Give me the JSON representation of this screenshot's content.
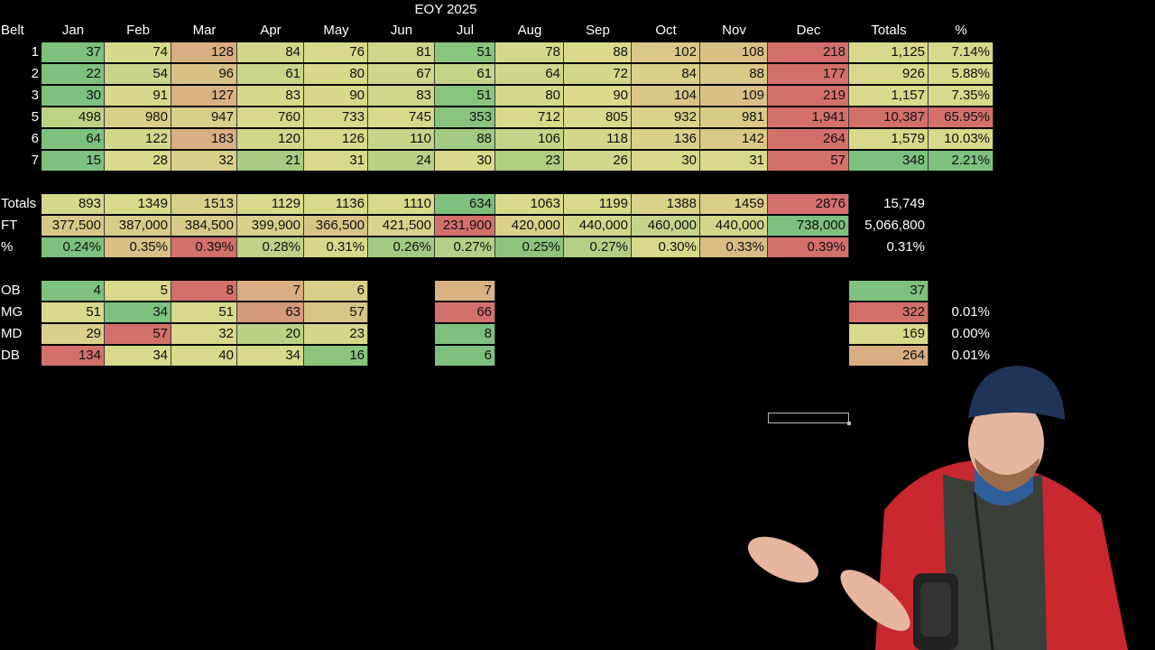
{
  "sheet": {
    "title": "EOY 2025",
    "corner_label": "Belt",
    "month_headers": [
      "Jan",
      "Feb",
      "Mar",
      "Apr",
      "May",
      "Jun",
      "Jul",
      "Aug",
      "Sep",
      "Oct",
      "Nov",
      "Dec"
    ],
    "totals_header": "Totals",
    "percent_header": "%"
  },
  "belts": [
    {
      "label": "1",
      "values": [
        "37",
        "74",
        "128",
        "84",
        "76",
        "81",
        "51",
        "78",
        "88",
        "102",
        "108",
        "218"
      ],
      "total": "1,125",
      "pct": "7.14%"
    },
    {
      "label": "2",
      "values": [
        "22",
        "54",
        "96",
        "61",
        "80",
        "67",
        "61",
        "64",
        "72",
        "84",
        "88",
        "177"
      ],
      "total": "926",
      "pct": "5.88%"
    },
    {
      "label": "3",
      "values": [
        "30",
        "91",
        "127",
        "83",
        "90",
        "83",
        "51",
        "80",
        "90",
        "104",
        "109",
        "219"
      ],
      "total": "1,157",
      "pct": "7.35%"
    },
    {
      "label": "5",
      "values": [
        "498",
        "980",
        "947",
        "760",
        "733",
        "745",
        "353",
        "712",
        "805",
        "932",
        "981",
        "1,941"
      ],
      "total": "10,387",
      "pct": "65.95%"
    },
    {
      "label": "6",
      "values": [
        "64",
        "122",
        "183",
        "120",
        "126",
        "110",
        "88",
        "106",
        "118",
        "136",
        "142",
        "264"
      ],
      "total": "1,579",
      "pct": "10.03%"
    },
    {
      "label": "7",
      "values": [
        "15",
        "28",
        "32",
        "21",
        "31",
        "24",
        "30",
        "23",
        "26",
        "30",
        "31",
        "57"
      ],
      "total": "348",
      "pct": "2.21%"
    }
  ],
  "belt_colors": [
    [
      "#7ec07e",
      "#d7d98a",
      "#d8ad82",
      "#d2d78a",
      "#d8d98a",
      "#cfd78a",
      "#88c47e",
      "#d4d88a",
      "#dcd98a",
      "#d9c887",
      "#d9c086",
      "#d4706c"
    ],
    [
      "#7ec07e",
      "#c7d48a",
      "#d8c187",
      "#cad58a",
      "#d8d88a",
      "#cdd68a",
      "#c3d48a",
      "#cdd68a",
      "#d2d78a",
      "#d9cf88",
      "#d9c886",
      "#d4706c"
    ],
    [
      "#7ec07e",
      "#d8d88a",
      "#d8b283",
      "#d6d88a",
      "#d8d88a",
      "#cfd78a",
      "#88c47e",
      "#d4d88a",
      "#dcd98a",
      "#d9c586",
      "#d9c086",
      "#d4706c"
    ],
    [
      "#bed284",
      "#d9cf88",
      "#d8cf88",
      "#d8d98a",
      "#d8d98a",
      "#d8d98a",
      "#88c47e",
      "#d8d98a",
      "#d8d98a",
      "#d9d38a",
      "#d9cb86",
      "#d4706c"
    ],
    [
      "#7ec07e",
      "#d2d78a",
      "#d8ae82",
      "#d0d68a",
      "#d8d98a",
      "#c6d48a",
      "#a1ca82",
      "#c4d48a",
      "#d4d78a",
      "#d9d08a",
      "#d9c886",
      "#d4706c"
    ],
    [
      "#7ec07e",
      "#d8d98a",
      "#d8d08a",
      "#a6cb82",
      "#d8d98a",
      "#b9d086",
      "#d8d98a",
      "#b0cd84",
      "#d0d68a",
      "#d8d98a",
      "#d8d98a",
      "#d4706c"
    ]
  ],
  "belt_total_colors": [
    "#d8d98a",
    "#d8d98a",
    "#d8d98a",
    "#d4706c",
    "#d8d98a",
    "#7ec07e"
  ],
  "belt_pct_colors": [
    "#d8d98a",
    "#d8d98a",
    "#d8d98a",
    "#d4706c",
    "#d8d98a",
    "#7ec07e"
  ],
  "summary": {
    "totals": {
      "label": "Totals",
      "values": [
        "893",
        "1349",
        "1513",
        "1129",
        "1136",
        "1110",
        "634",
        "1063",
        "1199",
        "1388",
        "1459",
        "2876"
      ],
      "grand": "15,749",
      "colors": [
        "#d4d88a",
        "#d8d98a",
        "#d8d08a",
        "#d8d98a",
        "#d8d98a",
        "#d8d98a",
        "#7ec07e",
        "#d8d98a",
        "#d8d98a",
        "#d9d38a",
        "#d9cd88",
        "#d4706c"
      ]
    },
    "ft": {
      "label": "FT",
      "values": [
        "377,500",
        "387,000",
        "384,500",
        "399,900",
        "366,500",
        "421,500",
        "231,900",
        "420,000",
        "440,000",
        "460,000",
        "440,000",
        "738,000"
      ],
      "grand": "5,066,800",
      "colors": [
        "#d8c887",
        "#d8cc88",
        "#d8ca88",
        "#d8d08a",
        "#d8c487",
        "#d8d38a",
        "#d4706c",
        "#d8d28a",
        "#d2d78a",
        "#c5d48a",
        "#d2d78a",
        "#7ec07e"
      ]
    },
    "pct": {
      "label": "%",
      "values": [
        "0.24%",
        "0.35%",
        "0.39%",
        "0.28%",
        "0.31%",
        "0.26%",
        "0.27%",
        "0.25%",
        "0.27%",
        "0.30%",
        "0.33%",
        "0.39%"
      ],
      "grand": "0.31%",
      "colors": [
        "#7ec07e",
        "#d8c087",
        "#d4706c",
        "#c0d288",
        "#d8d88a",
        "#a2ca82",
        "#b6cf86",
        "#8cc47e",
        "#b4ce86",
        "#d8d98a",
        "#d8bc86",
        "#d4706c"
      ]
    }
  },
  "ranks": [
    {
      "label": "OB",
      "values": [
        "4",
        "5",
        "8",
        "7",
        "6"
      ],
      "jul": "7",
      "total": "37",
      "pct": "",
      "colors": [
        "#7ec07e",
        "#d8d98a",
        "#d4706c",
        "#d8ae82",
        "#d8d08a"
      ],
      "jul_color": "#d8b283",
      "total_color": "#7ec07e"
    },
    {
      "label": "MG",
      "values": [
        "51",
        "34",
        "51",
        "63",
        "57"
      ],
      "jul": "66",
      "total": "322",
      "pct": "0.01%",
      "colors": [
        "#d8d98a",
        "#7ec07e",
        "#d8d98a",
        "#d49a7c",
        "#d8c487"
      ],
      "jul_color": "#d4706c",
      "total_color": "#d4706c"
    },
    {
      "label": "MD",
      "values": [
        "29",
        "57",
        "32",
        "20",
        "23"
      ],
      "jul": "8",
      "total": "169",
      "pct": "0.00%",
      "colors": [
        "#d8d08a",
        "#d4706c",
        "#d8d98a",
        "#b9d086",
        "#d2d78a"
      ],
      "jul_color": "#7ec07e",
      "total_color": "#d8d98a"
    },
    {
      "label": "DB",
      "values": [
        "134",
        "34",
        "40",
        "34",
        "16"
      ],
      "jul": "6",
      "total": "264",
      "pct": "0.01%",
      "colors": [
        "#d4706c",
        "#d8d98a",
        "#d8d98a",
        "#d8d98a",
        "#8cc47e"
      ],
      "jul_color": "#7ec07e",
      "total_color": "#d8ad82"
    }
  ],
  "icons": {
    "presenter": "person-presenter-illustration"
  }
}
